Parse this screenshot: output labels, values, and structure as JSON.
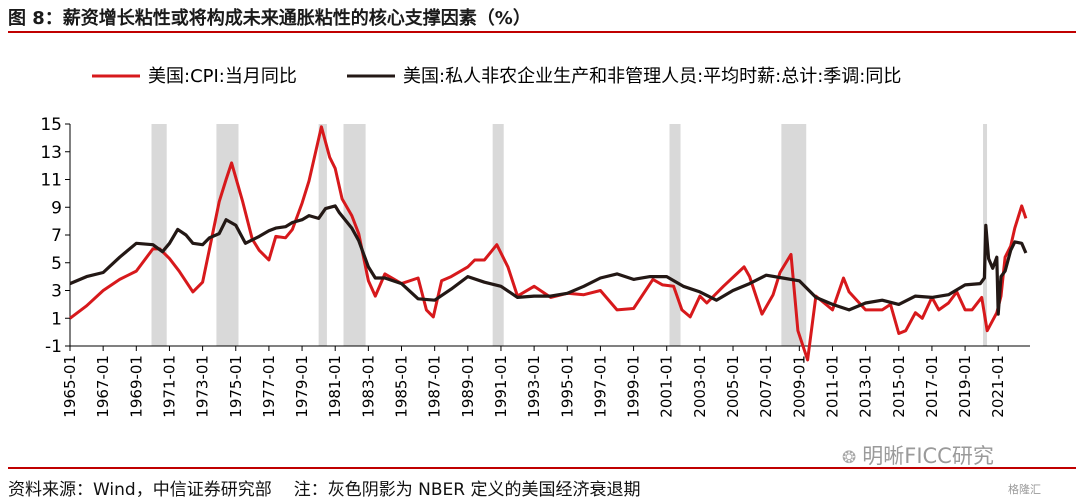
{
  "header": {
    "title": "图 8：薪资增长粘性或将构成未来通胀粘性的核心支撑因素（%）"
  },
  "footer": {
    "source": "资料来源：Wind，中信证券研究部",
    "note": "注：灰色阴影为 NBER 定义的美国经济衰退期"
  },
  "watermark": {
    "icon": "wechat-icon",
    "text": "明晰FICC研究",
    "badge": "格隆汇"
  },
  "colors": {
    "title_rule": "#c00000",
    "cpi": "#d7191c",
    "wages": "#231815",
    "recession": "#d9d9d9"
  },
  "chart_data": {
    "type": "line",
    "title": "",
    "xlabel": "",
    "ylabel": "",
    "ylim": [
      -1,
      15
    ],
    "yticks": [
      15,
      13,
      11,
      9,
      7,
      5,
      3,
      1,
      -1
    ],
    "xlim": [
      "1965-01",
      "2022-12"
    ],
    "xticks": [
      "1965-01",
      "1967-01",
      "1969-01",
      "1971-01",
      "1973-01",
      "1975-01",
      "1977-01",
      "1979-01",
      "1981-01",
      "1983-01",
      "1985-01",
      "1987-01",
      "1989-01",
      "1991-01",
      "1993-01",
      "1995-01",
      "1997-01",
      "1999-01",
      "2001-01",
      "2003-01",
      "2005-01",
      "2007-01",
      "2009-01",
      "2011-01",
      "2013-01",
      "2015-01",
      "2017-01",
      "2019-01",
      "2021-01"
    ],
    "grid": false,
    "legend_position": "top",
    "recessions": [
      [
        "1969-12",
        "1970-11"
      ],
      [
        "1973-11",
        "1975-03"
      ],
      [
        "1980-01",
        "1980-07"
      ],
      [
        "1981-07",
        "1982-11"
      ],
      [
        "1990-07",
        "1991-03"
      ],
      [
        "2001-03",
        "2001-11"
      ],
      [
        "2007-12",
        "2009-06"
      ],
      [
        "2020-02",
        "2020-04"
      ]
    ],
    "series": [
      {
        "name": "美国:CPI:当月同比",
        "color": "#d7191c",
        "x": [
          "1965-01",
          "1966-01",
          "1967-01",
          "1968-01",
          "1969-01",
          "1970-01",
          "1970-06",
          "1971-01",
          "1971-08",
          "1972-06",
          "1973-01",
          "1973-06",
          "1974-01",
          "1974-06",
          "1974-10",
          "1975-06",
          "1976-01",
          "1976-06",
          "1977-01",
          "1977-06",
          "1978-01",
          "1978-06",
          "1979-01",
          "1979-06",
          "1980-03",
          "1980-09",
          "1981-01",
          "1981-06",
          "1982-01",
          "1982-06",
          "1983-01",
          "1983-06",
          "1984-01",
          "1985-01",
          "1986-01",
          "1986-07",
          "1986-12",
          "1987-06",
          "1988-01",
          "1989-01",
          "1989-06",
          "1990-01",
          "1990-10",
          "1991-06",
          "1992-01",
          "1993-01",
          "1994-01",
          "1995-01",
          "1996-01",
          "1997-01",
          "1998-01",
          "1999-01",
          "2000-03",
          "2000-10",
          "2001-06",
          "2001-12",
          "2002-06",
          "2003-01",
          "2003-06",
          "2004-06",
          "2005-09",
          "2006-01",
          "2006-10",
          "2007-06",
          "2007-11",
          "2008-07",
          "2008-12",
          "2009-07",
          "2010-01",
          "2011-01",
          "2011-09",
          "2012-01",
          "2013-01",
          "2014-01",
          "2014-07",
          "2015-01",
          "2015-06",
          "2016-01",
          "2016-06",
          "2017-01",
          "2017-06",
          "2018-01",
          "2018-07",
          "2019-01",
          "2019-06",
          "2020-01",
          "2020-05",
          "2020-12",
          "2021-03",
          "2021-06",
          "2021-10",
          "2022-01",
          "2022-06",
          "2022-09"
        ],
        "values": [
          1.0,
          1.9,
          3.0,
          3.8,
          4.4,
          6.0,
          6.0,
          5.3,
          4.4,
          2.9,
          3.6,
          6.0,
          9.4,
          11.0,
          12.2,
          9.4,
          6.7,
          5.9,
          5.2,
          6.9,
          6.8,
          7.4,
          9.3,
          10.9,
          14.8,
          12.6,
          11.8,
          9.6,
          8.4,
          7.1,
          3.7,
          2.6,
          4.2,
          3.5,
          3.9,
          1.6,
          1.1,
          3.7,
          4.0,
          4.7,
          5.2,
          5.2,
          6.3,
          4.7,
          2.6,
          3.3,
          2.5,
          2.8,
          2.7,
          3.0,
          1.6,
          1.7,
          3.8,
          3.4,
          3.3,
          1.6,
          1.1,
          2.6,
          2.1,
          3.3,
          4.7,
          4.0,
          1.3,
          2.7,
          4.3,
          5.6,
          0.1,
          -2.0,
          2.6,
          1.6,
          3.9,
          2.9,
          1.6,
          1.6,
          2.0,
          -0.1,
          0.1,
          1.4,
          1.0,
          2.5,
          1.6,
          2.1,
          2.9,
          1.6,
          1.6,
          2.5,
          0.1,
          1.4,
          2.6,
          5.4,
          6.2,
          7.5,
          9.1,
          8.2
        ]
      },
      {
        "name": "美国:私人非农企业生产和非管理人员:平均时薪:总计:季调:同比",
        "color": "#231815",
        "x": [
          "1965-01",
          "1966-01",
          "1967-01",
          "1968-01",
          "1969-01",
          "1970-01",
          "1970-08",
          "1971-01",
          "1971-07",
          "1972-01",
          "1972-06",
          "1973-01",
          "1973-06",
          "1974-01",
          "1974-06",
          "1975-01",
          "1975-08",
          "1976-06",
          "1977-01",
          "1977-06",
          "1978-01",
          "1978-06",
          "1979-01",
          "1979-06",
          "1980-01",
          "1980-06",
          "1981-01",
          "1981-04",
          "1982-01",
          "1982-06",
          "1983-01",
          "1983-06",
          "1984-01",
          "1985-01",
          "1986-01",
          "1987-01",
          "1988-01",
          "1989-01",
          "1990-01",
          "1991-01",
          "1992-01",
          "1993-01",
          "1994-01",
          "1995-01",
          "1996-01",
          "1997-01",
          "1998-01",
          "1999-01",
          "2000-01",
          "2001-01",
          "2002-01",
          "2003-01",
          "2004-01",
          "2005-01",
          "2006-01",
          "2007-01",
          "2008-01",
          "2009-01",
          "2010-01",
          "2011-01",
          "2012-01",
          "2013-01",
          "2014-01",
          "2015-01",
          "2016-01",
          "2017-01",
          "2018-01",
          "2019-01",
          "2019-12",
          "2020-03",
          "2020-04",
          "2020-06",
          "2020-09",
          "2020-12",
          "2021-01",
          "2021-03",
          "2021-06",
          "2021-10",
          "2022-01",
          "2022-06",
          "2022-09"
        ],
        "values": [
          3.5,
          4.0,
          4.3,
          5.4,
          6.4,
          6.3,
          5.8,
          6.4,
          7.4,
          7.0,
          6.4,
          6.3,
          6.8,
          7.1,
          8.1,
          7.7,
          6.4,
          6.9,
          7.3,
          7.5,
          7.6,
          7.9,
          8.1,
          8.4,
          8.2,
          8.9,
          9.1,
          8.6,
          7.5,
          6.6,
          4.7,
          3.9,
          3.9,
          3.5,
          2.4,
          2.3,
          3.1,
          4.0,
          3.6,
          3.3,
          2.5,
          2.6,
          2.6,
          2.8,
          3.3,
          3.9,
          4.2,
          3.8,
          4.0,
          4.0,
          3.3,
          2.9,
          2.3,
          3.0,
          3.5,
          4.1,
          3.9,
          3.7,
          2.5,
          2.0,
          1.6,
          2.1,
          2.3,
          2.0,
          2.6,
          2.5,
          2.7,
          3.4,
          3.5,
          3.9,
          7.7,
          5.3,
          4.6,
          5.4,
          1.3,
          4.0,
          4.4,
          5.9,
          6.5,
          6.4,
          5.7
        ]
      }
    ]
  }
}
